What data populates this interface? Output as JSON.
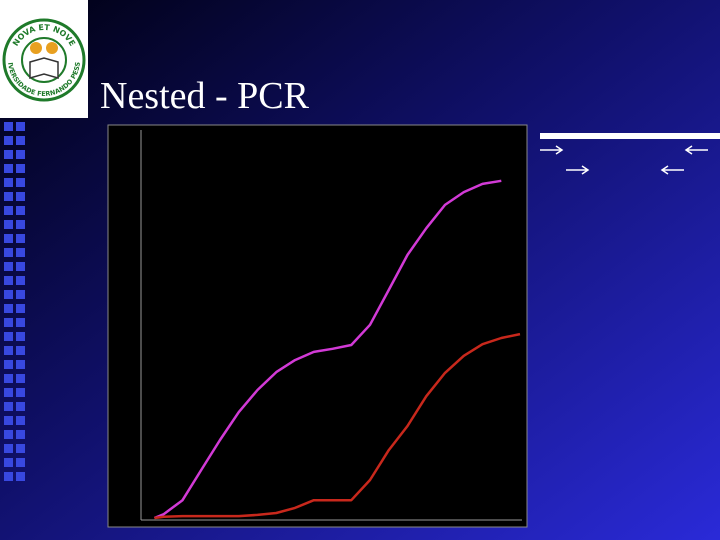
{
  "slide": {
    "title": "Nested - PCR",
    "logo": {
      "top_text": "NOVA ET NOVE",
      "bottom_text": "UNIVERSIDADE FERNANDO PESSOA"
    }
  },
  "chart_data": {
    "type": "line",
    "x": [
      1,
      2,
      4,
      6,
      8,
      10,
      12,
      14,
      16,
      18,
      20,
      22,
      24,
      26,
      28,
      30,
      32,
      34,
      36,
      38,
      40
    ],
    "xlim": [
      0,
      40
    ],
    "ylim": [
      0,
      100
    ],
    "series": [
      {
        "color": "#d23ad6",
        "values": [
          0,
          1,
          4.6,
          12.4,
          20.1,
          27.3,
          33,
          37.6,
          40.7,
          42.8,
          43.6,
          44.6,
          49.8,
          58.8,
          67.8,
          74.7,
          80.7,
          84,
          86.1,
          86.9,
          null
        ]
      },
      {
        "color": "#c8281c",
        "values": [
          0,
          0.3,
          0.5,
          0.5,
          0.5,
          0.5,
          0.8,
          1.3,
          2.6,
          4.6,
          4.6,
          4.6,
          9.8,
          17.5,
          23.7,
          31.4,
          37.4,
          41.8,
          44.8,
          46.4,
          47.4
        ]
      }
    ]
  }
}
